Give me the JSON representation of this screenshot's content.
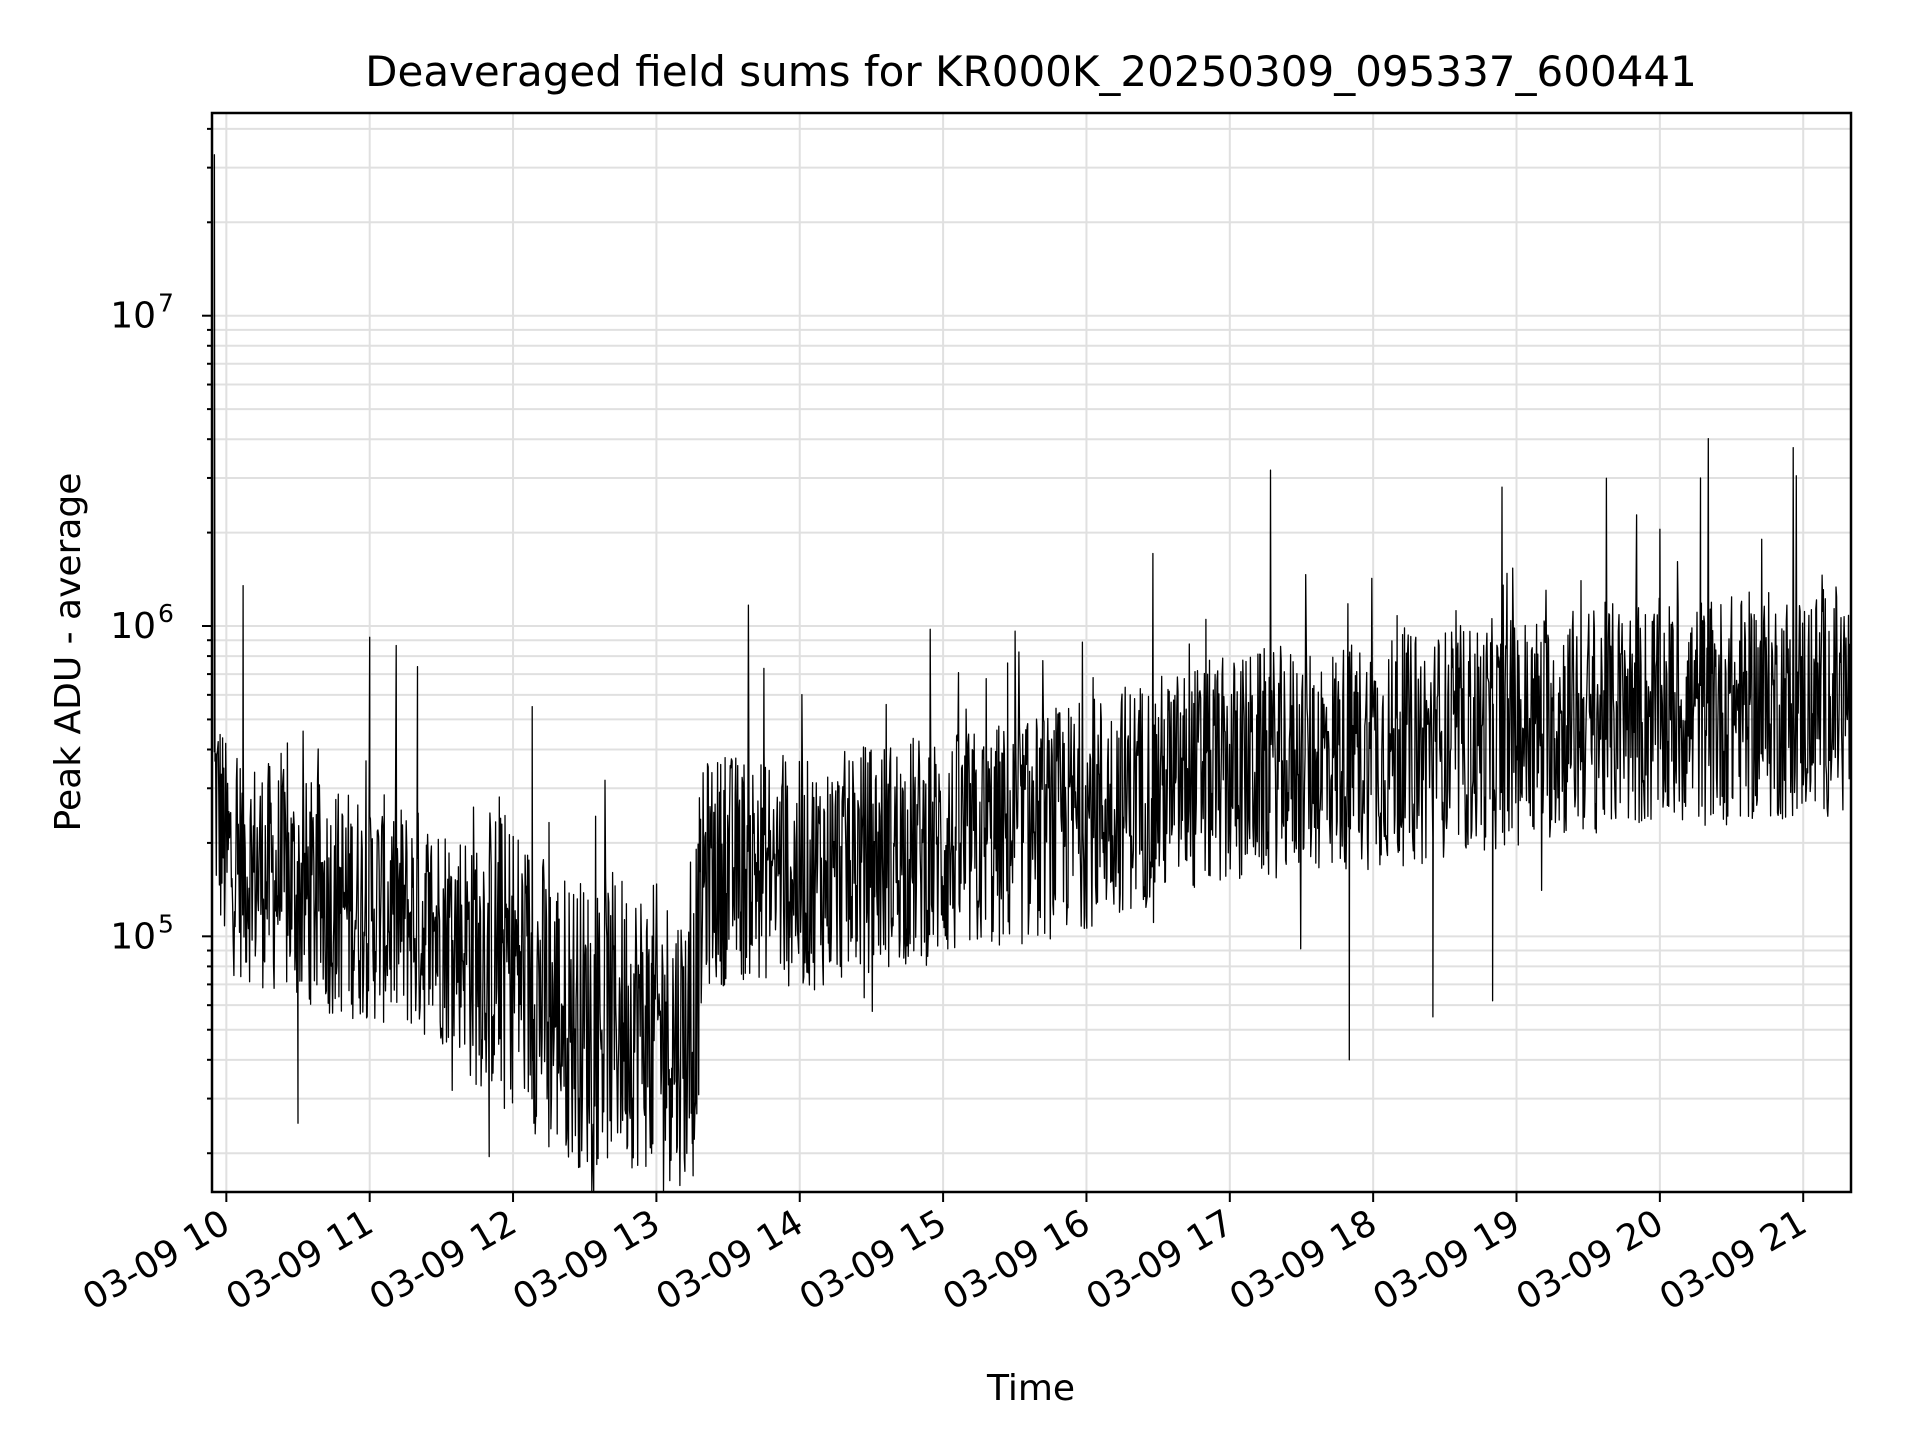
{
  "chart_data": {
    "type": "line",
    "title": "Deaveraged field sums for KR000K_20250309_095337_600441",
    "xlabel": "Time",
    "ylabel": "Peak ADU - average",
    "yscale": "log",
    "ylim": [
      15000,
      45000000
    ],
    "xlim": [
      "2025-03-09 09:54",
      "2025-03-09 21:20"
    ],
    "grid": "both",
    "series_color": "#000000",
    "x_ticks": [
      "03-09 10",
      "03-09 11",
      "03-09 12",
      "03-09 13",
      "03-09 14",
      "03-09 15",
      "03-09 16",
      "03-09 17",
      "03-09 18",
      "03-09 19",
      "03-09 20",
      "03-09 21"
    ],
    "y_ticks": [
      {
        "value": 100000,
        "base": "10",
        "exp": "5"
      },
      {
        "value": 1000000,
        "base": "10",
        "exp": "6"
      },
      {
        "value": 10000000,
        "base": "10",
        "exp": "7"
      }
    ],
    "series": [
      {
        "x": [
          "2025-03-09 09:55",
          "2025-03-09 10:00",
          "2025-03-09 10:15",
          "2025-03-09 10:30",
          "2025-03-09 10:45",
          "2025-03-09 11:00",
          "2025-03-09 11:15",
          "2025-03-09 11:30",
          "2025-03-09 11:45",
          "2025-03-09 12:00",
          "2025-03-09 12:15",
          "2025-03-09 12:30",
          "2025-03-09 12:45",
          "2025-03-09 13:00",
          "2025-03-09 13:15",
          "2025-03-09 13:20",
          "2025-03-09 13:30",
          "2025-03-09 13:45",
          "2025-03-09 14:00",
          "2025-03-09 14:15",
          "2025-03-09 14:30",
          "2025-03-09 14:45",
          "2025-03-09 15:00",
          "2025-03-09 15:15",
          "2025-03-09 15:30",
          "2025-03-09 15:45",
          "2025-03-09 16:00",
          "2025-03-09 16:15",
          "2025-03-09 16:30",
          "2025-03-09 16:45",
          "2025-03-09 17:00",
          "2025-03-09 17:15",
          "2025-03-09 17:30",
          "2025-03-09 17:45",
          "2025-03-09 18:00",
          "2025-03-09 18:15",
          "2025-03-09 18:30",
          "2025-03-09 18:45",
          "2025-03-09 19:00",
          "2025-03-09 19:15",
          "2025-03-09 19:30",
          "2025-03-09 19:45",
          "2025-03-09 20:00",
          "2025-03-09 20:15",
          "2025-03-09 20:30",
          "2025-03-09 20:45",
          "2025-03-09 21:00",
          "2025-03-09 21:15"
        ],
        "y": [
          300000,
          180000,
          160000,
          140000,
          130000,
          125000,
          115000,
          105000,
          95000,
          85000,
          60000,
          52000,
          55000,
          50000,
          45000,
          160000,
          165000,
          170000,
          155000,
          165000,
          180000,
          190000,
          190000,
          200000,
          215000,
          230000,
          250000,
          280000,
          300000,
          320000,
          340000,
          360000,
          370000,
          380000,
          390000,
          400000,
          420000,
          440000,
          460000,
          480000,
          500000,
          510000,
          520000,
          530000,
          540000,
          550000,
          560000,
          580000
        ],
        "spikes": [
          {
            "x": "2025-03-09 09:55",
            "y": 33000000
          },
          {
            "x": "2025-03-09 10:07",
            "y": 1350000
          },
          {
            "x": "2025-03-09 11:00",
            "y": 920000
          },
          {
            "x": "2025-03-09 11:20",
            "y": 740000
          },
          {
            "x": "2025-03-09 12:08",
            "y": 550000
          },
          {
            "x": "2025-03-09 13:45",
            "y": 730000
          },
          {
            "x": "2025-03-09 15:27",
            "y": 760000
          },
          {
            "x": "2025-03-09 16:50",
            "y": 1050000
          },
          {
            "x": "2025-03-09 18:10",
            "y": 1080000
          },
          {
            "x": "2025-03-09 19:27",
            "y": 1400000
          },
          {
            "x": "2025-03-09 20:00",
            "y": 2050000
          },
          {
            "x": "2025-03-09 20:17",
            "y": 3000000
          }
        ],
        "dips": [
          {
            "x": "2025-03-09 10:30",
            "y": 25000
          },
          {
            "x": "2025-03-09 11:50",
            "y": 19500
          },
          {
            "x": "2025-03-09 12:15",
            "y": 21000
          },
          {
            "x": "2025-03-09 12:58",
            "y": 20000
          },
          {
            "x": "2025-03-09 13:15",
            "y": 21500
          },
          {
            "x": "2025-03-09 17:50",
            "y": 40000
          },
          {
            "x": "2025-03-09 18:25",
            "y": 55000
          },
          {
            "x": "2025-03-09 18:50",
            "y": 62000
          }
        ]
      }
    ]
  }
}
